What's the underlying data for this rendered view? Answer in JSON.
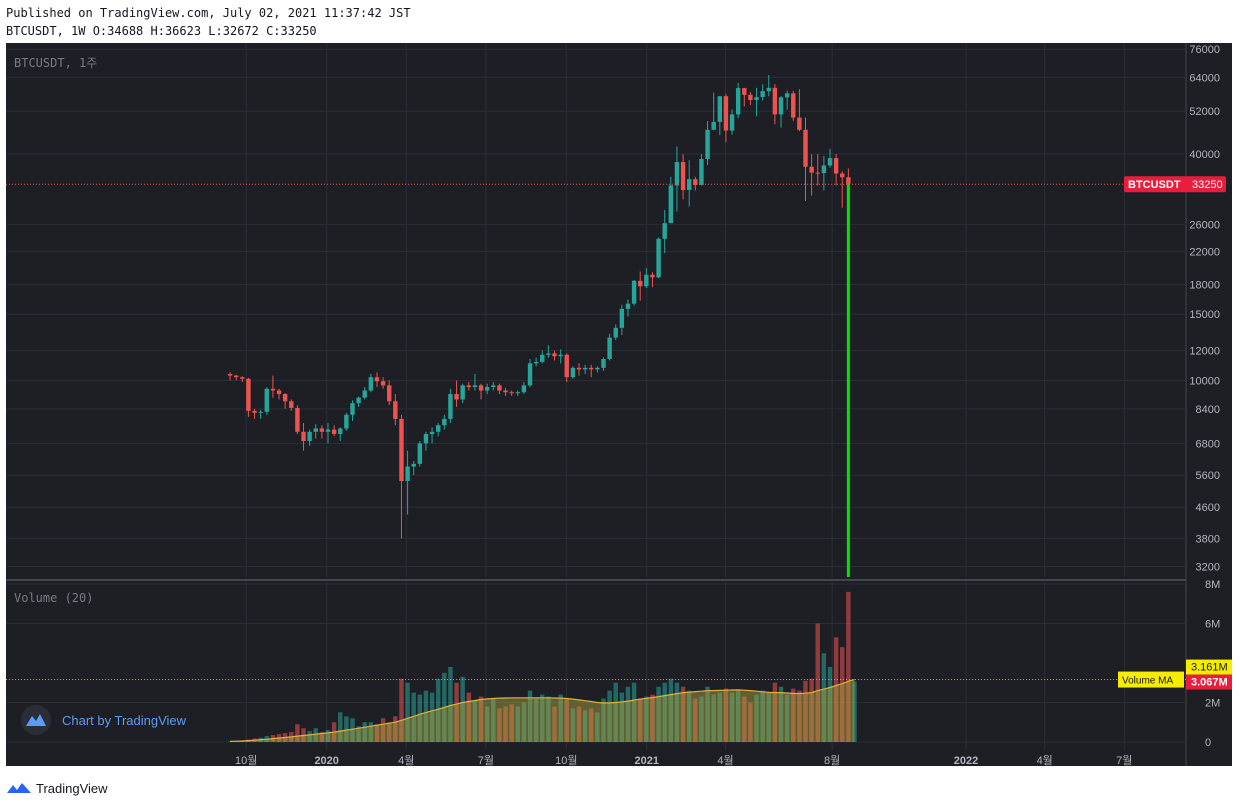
{
  "header": {
    "published": "Published on TradingView.com, July 02, 2021 11:37:42 JST",
    "ohlc": "BTCUSDT, 1W O:34688 H:36623 L:32672 C:33250"
  },
  "footer": {
    "brand": "TradingView"
  },
  "colors": {
    "background": "#1e1f25",
    "up": "#26a69a",
    "down": "#ef5350",
    "price_line": "#ef5350",
    "marker": "#00e600",
    "grid": "#2a2e39",
    "ma": "#b4aa41"
  },
  "chart_data": [
    {
      "type": "candlestick",
      "title": "BTCUSDT, 1주",
      "scale": "log",
      "ylim": [
        3000,
        78000
      ],
      "y_ticks": [
        76000,
        64000,
        52000,
        40000,
        33250,
        26000,
        22000,
        18000,
        15000,
        12000,
        10000,
        8400,
        6800,
        5600,
        4600,
        3800,
        3200
      ],
      "x_ticks": [
        "10월",
        "2020",
        "4월",
        "7월",
        "10월",
        "2021",
        "4월",
        "8월",
        "2022",
        "4월",
        "7월"
      ],
      "last_price_label": "BTCUSDT",
      "last_price": 33250,
      "grid": true,
      "series": [
        {
          "name": "BTCUSDT",
          "start": "2019-09-09",
          "ohlc": [
            [
              10400,
              10500,
              10000,
              10300
            ],
            [
              10300,
              10350,
              10000,
              10200
            ],
            [
              10200,
              10250,
              9900,
              10100
            ],
            [
              10100,
              10150,
              8000,
              8300
            ],
            [
              8300,
              8400,
              7900,
              8200
            ],
            [
              8200,
              8350,
              7900,
              8250
            ],
            [
              8250,
              9600,
              8100,
              9500
            ],
            [
              9500,
              10300,
              9000,
              9400
            ],
            [
              9400,
              9500,
              8900,
              9200
            ],
            [
              9200,
              9250,
              8400,
              8800
            ],
            [
              8800,
              8900,
              8300,
              8450
            ],
            [
              8450,
              8600,
              7200,
              7300
            ],
            [
              7300,
              7700,
              6500,
              6900
            ],
            [
              6900,
              7400,
              6700,
              7300
            ],
            [
              7300,
              7650,
              7000,
              7450
            ],
            [
              7450,
              7600,
              7000,
              7300
            ],
            [
              7300,
              7700,
              6800,
              7400
            ],
            [
              7400,
              7600,
              7100,
              7200
            ],
            [
              7200,
              7500,
              6900,
              7450
            ],
            [
              7450,
              8200,
              7350,
              8100
            ],
            [
              8100,
              8850,
              7800,
              8700
            ],
            [
              8700,
              9050,
              8500,
              9000
            ],
            [
              9000,
              9600,
              8900,
              9400
            ],
            [
              9400,
              10400,
              9300,
              10200
            ],
            [
              10200,
              10500,
              9600,
              9950
            ],
            [
              9950,
              10200,
              9500,
              9700
            ],
            [
              9700,
              10000,
              8600,
              8800
            ],
            [
              8800,
              9200,
              7600,
              7900
            ],
            [
              7900,
              8100,
              3800,
              5400
            ],
            [
              5400,
              6500,
              4400,
              5900
            ],
            [
              5900,
              6100,
              5600,
              6000
            ],
            [
              6000,
              6900,
              5900,
              6800
            ],
            [
              6800,
              7300,
              6500,
              7200
            ],
            [
              7200,
              7500,
              6800,
              7300
            ],
            [
              7300,
              7700,
              7100,
              7600
            ],
            [
              7600,
              8100,
              7400,
              7900
            ],
            [
              7900,
              9500,
              7700,
              9200
            ],
            [
              9200,
              10000,
              8500,
              8900
            ],
            [
              8900,
              9800,
              8700,
              9700
            ],
            [
              9700,
              9900,
              9400,
              9600
            ],
            [
              9600,
              10400,
              9400,
              9700
            ],
            [
              9700,
              9800,
              8900,
              9400
            ],
            [
              9400,
              9800,
              9200,
              9600
            ],
            [
              9600,
              9900,
              9400,
              9700
            ],
            [
              9700,
              9800,
              9200,
              9400
            ],
            [
              9400,
              9550,
              9100,
              9300
            ],
            [
              9300,
              9400,
              9100,
              9250
            ],
            [
              9250,
              9400,
              9100,
              9300
            ],
            [
              9300,
              9900,
              9200,
              9700
            ],
            [
              9700,
              11400,
              9600,
              11100
            ],
            [
              11100,
              11500,
              10900,
              11200
            ],
            [
              11200,
              12000,
              11100,
              11700
            ],
            [
              11700,
              12400,
              11500,
              11800
            ],
            [
              11800,
              12000,
              11300,
              11600
            ],
            [
              11600,
              12100,
              11100,
              11700
            ],
            [
              11700,
              11800,
              9900,
              10200
            ],
            [
              10200,
              10900,
              10100,
              10800
            ],
            [
              10800,
              11100,
              10300,
              10700
            ],
            [
              10700,
              11000,
              10400,
              10800
            ],
            [
              10800,
              11000,
              10200,
              10700
            ],
            [
              10700,
              10900,
              10500,
              10800
            ],
            [
              10800,
              11500,
              10600,
              11400
            ],
            [
              11400,
              13300,
              11300,
              13000
            ],
            [
              13000,
              14100,
              12800,
              13800
            ],
            [
              13800,
              15900,
              13200,
              15500
            ],
            [
              15500,
              16400,
              14800,
              16000
            ],
            [
              16000,
              18500,
              15800,
              18400
            ],
            [
              18400,
              19500,
              16300,
              17800
            ],
            [
              17800,
              19900,
              17600,
              19100
            ],
            [
              19100,
              19400,
              17700,
              18800
            ],
            [
              18800,
              24000,
              18700,
              23800
            ],
            [
              23800,
              28400,
              21800,
              26200
            ],
            [
              26200,
              34800,
              26200,
              33000
            ],
            [
              33000,
              41900,
              28100,
              38100
            ],
            [
              38100,
              40000,
              30300,
              32100
            ],
            [
              32100,
              38500,
              29000,
              34300
            ],
            [
              34300,
              34800,
              32000,
              33100
            ],
            [
              33100,
              40000,
              33000,
              38800
            ],
            [
              38800,
              49000,
              37400,
              46400
            ],
            [
              46400,
              58300,
              46300,
              48700
            ],
            [
              48700,
              57000,
              44900,
              57000
            ],
            [
              57000,
              57700,
              43000,
              46200
            ],
            [
              46200,
              52600,
              45000,
              51000
            ],
            [
              51000,
              61800,
              49800,
              59900
            ],
            [
              59900,
              60000,
              53500,
              57500
            ],
            [
              57500,
              58500,
              54000,
              55700
            ],
            [
              55700,
              60000,
              50400,
              56700
            ],
            [
              56700,
              61300,
              55500,
              58800
            ],
            [
              58800,
              64900,
              57000,
              60000
            ],
            [
              60000,
              61400,
              48000,
              51000
            ],
            [
              51000,
              57000,
              47000,
              56600
            ],
            [
              56600,
              59000,
              52500,
              58000
            ],
            [
              58000,
              58900,
              49000,
              50000
            ],
            [
              50000,
              59500,
              46000,
              46400
            ],
            [
              46400,
              50000,
              30000,
              37000
            ],
            [
              37000,
              40000,
              31000,
              35700
            ],
            [
              35700,
              40000,
              33000,
              35600
            ],
            [
              35600,
              39500,
              32000,
              37300
            ],
            [
              37300,
              41300,
              36800,
              39000
            ],
            [
              39000,
              40000,
              33000,
              35500
            ],
            [
              35500,
              36000,
              28800,
              34700
            ],
            [
              34700,
              36623,
              32672,
              33250
            ]
          ]
        }
      ]
    },
    {
      "type": "bar",
      "title": "Volume (20)",
      "ylim": [
        0,
        8100000
      ],
      "y_ticks": [
        "8M",
        "6M",
        "3.161M",
        "2M",
        "0"
      ],
      "ma_label": "Volume MA",
      "ma_value": "3.161M",
      "last_volume": "3.067M",
      "series": [
        {
          "name": "Volume",
          "values": [
            0.03,
            0.05,
            0.08,
            0.12,
            0.18,
            0.22,
            0.3,
            0.35,
            0.4,
            0.45,
            0.5,
            0.9,
            0.7,
            0.55,
            0.7,
            0.5,
            0.6,
            1.0,
            1.5,
            1.3,
            1.2,
            0.8,
            1.0,
            1.0,
            0.9,
            1.2,
            1.0,
            1.3,
            3.2,
            3.0,
            2.5,
            2.4,
            2.6,
            2.5,
            3.2,
            3.5,
            3.8,
            3.0,
            3.3,
            2.5,
            2.1,
            2.3,
            1.8,
            2.2,
            1.7,
            1.8,
            1.9,
            1.8,
            2.0,
            2.6,
            2.2,
            2.4,
            2.3,
            1.8,
            2.4,
            2.2,
            1.7,
            1.8,
            1.6,
            1.7,
            1.5,
            2.2,
            2.6,
            3.0,
            2.5,
            2.8,
            3.0,
            2.2,
            2.3,
            2.4,
            2.8,
            3.0,
            3.2,
            3.0,
            2.8,
            2.6,
            2.2,
            2.3,
            2.8,
            2.4,
            2.5,
            2.7,
            2.5,
            2.6,
            2.3,
            2.0,
            2.4,
            2.6,
            2.5,
            3.0,
            2.8,
            2.4,
            2.7,
            2.6,
            3.1,
            3.2,
            6.0,
            4.5,
            3.8,
            5.3,
            4.8,
            7.6,
            3.07
          ]
        },
        {
          "name": "Volume MA",
          "values": [
            0.03,
            0.04,
            0.05,
            0.07,
            0.09,
            0.12,
            0.14,
            0.17,
            0.2,
            0.23,
            0.26,
            0.3,
            0.33,
            0.36,
            0.4,
            0.43,
            0.46,
            0.5,
            0.55,
            0.6,
            0.65,
            0.7,
            0.75,
            0.8,
            0.85,
            0.9,
            0.95,
            1.0,
            1.1,
            1.2,
            1.3,
            1.4,
            1.5,
            1.58,
            1.66,
            1.75,
            1.85,
            1.92,
            2.0,
            2.05,
            2.1,
            2.15,
            2.18,
            2.2,
            2.22,
            2.23,
            2.24,
            2.24,
            2.24,
            2.24,
            2.24,
            2.24,
            2.24,
            2.23,
            2.22,
            2.2,
            2.17,
            2.13,
            2.09,
            2.05,
            2.0,
            1.98,
            1.98,
            2.0,
            2.03,
            2.07,
            2.12,
            2.17,
            2.21,
            2.25,
            2.3,
            2.35,
            2.4,
            2.45,
            2.5,
            2.52,
            2.55,
            2.57,
            2.6,
            2.6,
            2.61,
            2.62,
            2.63,
            2.64,
            2.62,
            2.6,
            2.57,
            2.54,
            2.51,
            2.5,
            2.5,
            2.48,
            2.46,
            2.45,
            2.47,
            2.5,
            2.6,
            2.68,
            2.76,
            2.86,
            2.95,
            3.08,
            3.161
          ]
        }
      ]
    }
  ]
}
